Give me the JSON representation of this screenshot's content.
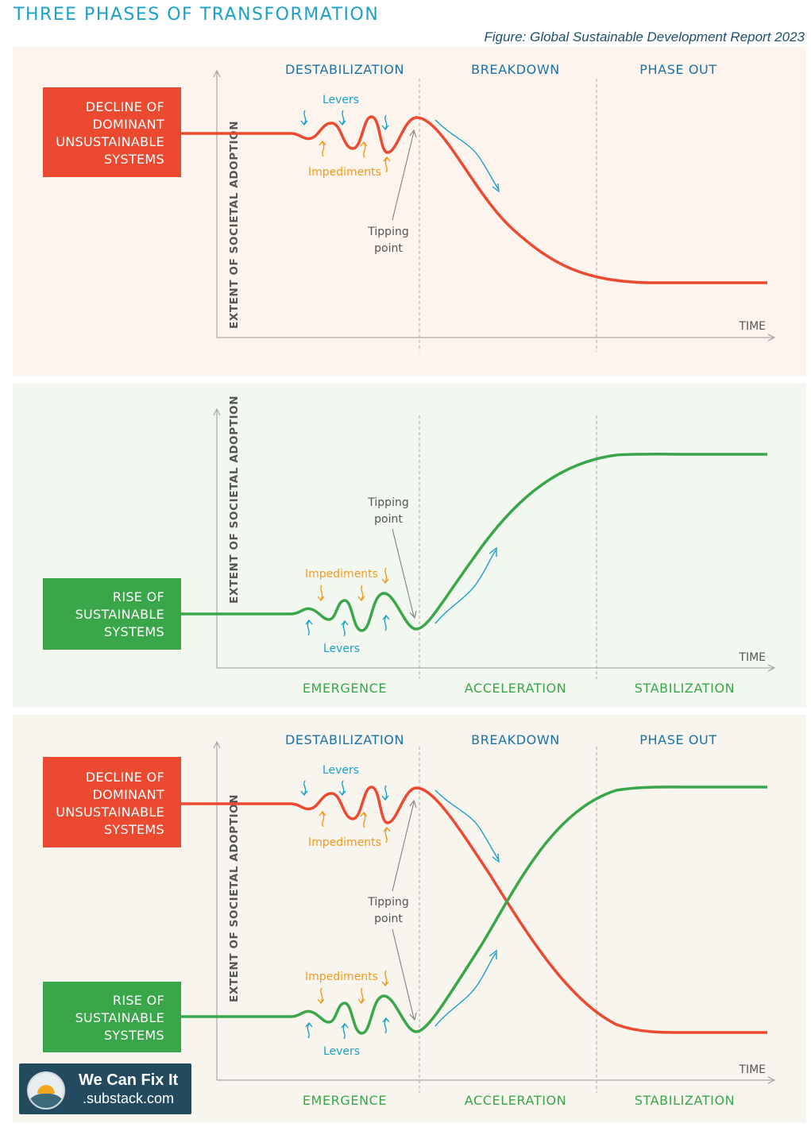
{
  "title": "THREE PHASES OF TRANSFORMATION",
  "source": "Figure: Global Sustainable Development Report 2023",
  "colors": {
    "decline": "#eb4a30",
    "rise": "#3aa64a",
    "blue_text": "#1a72a8",
    "green_text": "#3aa64a",
    "levers": "#1ba1c9",
    "impediments": "#f29a1e",
    "panel1_bg": "#fdf4ee",
    "panel2_bg": "#f2f7f0",
    "panel3_bg": "#f8f4ee"
  },
  "labels": {
    "destabilization": "DESTABILIZATION",
    "breakdown": "BREAKDOWN",
    "phase_out": "PHASE OUT",
    "emergence": "EMERGENCE",
    "acceleration": "ACCELERATION",
    "stabilization": "STABILIZATION",
    "yaxis": "EXTENT OF SOCIETAL ADOPTION",
    "xaxis": "TIME",
    "levers": "Levers",
    "impediments": "Impediments",
    "tipping_1": "Tipping",
    "tipping_2": "point"
  },
  "decline_box": [
    "DECLINE OF",
    "DOMINANT",
    "UNSUSTAINABLE",
    "SYSTEMS"
  ],
  "rise_box": [
    "RISE OF",
    "SUSTAINABLE",
    "SYSTEMS"
  ],
  "logo": {
    "line1": "We Can Fix It",
    "line2": ".substack.com"
  }
}
